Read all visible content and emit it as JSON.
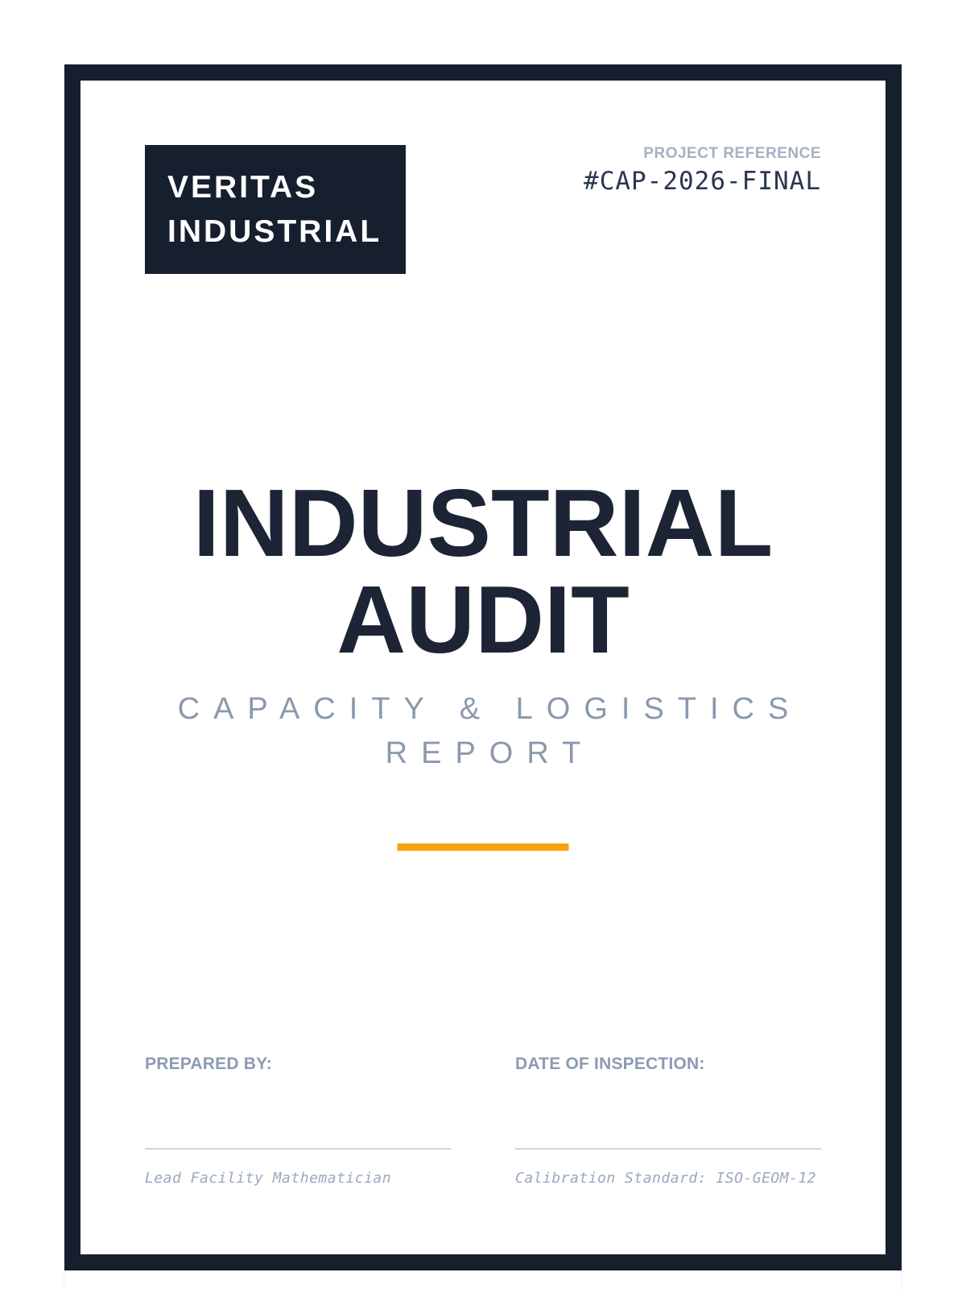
{
  "colors": {
    "navy": "#161f2e",
    "title_navy": "#1c2435",
    "accent_orange": "#f6a40a",
    "subtitle_gray": "#8a99ae",
    "label_gray": "#8b9bb2",
    "ref_label_gray": "#a5b1c3",
    "code_navy": "#2a3650",
    "rule_gray": "#cdd5e0",
    "note_gray": "#9aa8bd"
  },
  "header": {
    "logo_line1": "VERITAS",
    "logo_line2": "INDUSTRIAL",
    "project_reference_label": "PROJECT REFERENCE",
    "project_reference_code": "#CAP-2026-FINAL"
  },
  "title": {
    "line1": "INDUSTRIAL",
    "line2": "AUDIT",
    "subtitle_line1": "CAPACITY & LOGISTICS",
    "subtitle_line2": "REPORT"
  },
  "footer": {
    "prepared_by_label": "PREPARED BY:",
    "prepared_by_note": "Lead Facility Mathematician",
    "inspection_label": "DATE OF INSPECTION:",
    "inspection_note": "Calibration Standard: ISO-GEOM-12"
  }
}
